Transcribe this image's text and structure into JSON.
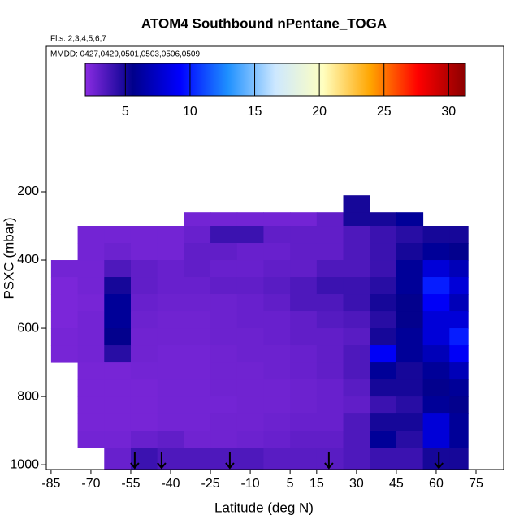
{
  "chart_data": {
    "type": "heatmap",
    "title": "ATOM4 Southbound nPentane_TOGA",
    "subtitle": "Flts: 2,3,4,5,6,7",
    "annotation": "MMDD: 0427,0429,0501,0503,0506,0509",
    "xlabel": "Latitude (deg N)",
    "ylabel": "PSXC (mbar)",
    "xlim": [
      -86.8,
      85.4
    ],
    "xticks": [
      -85,
      -70,
      -55,
      -40,
      -25,
      -10,
      5,
      15,
      30,
      45,
      60,
      75
    ],
    "ylim": [
      1014,
      -226
    ],
    "yticks": [
      200,
      400,
      600,
      800,
      1000
    ],
    "x_edges": [
      -85,
      -75,
      -65,
      -55,
      -45,
      -35,
      -25,
      -15,
      -5,
      5,
      15,
      25,
      35,
      45,
      55,
      65,
      72
    ],
    "y_edges": [
      210,
      260,
      300,
      350,
      400,
      450,
      500,
      550,
      600,
      650,
      700,
      750,
      800,
      850,
      900,
      950,
      1014
    ],
    "values": [
      [
        null,
        null,
        null,
        null,
        null,
        null,
        null,
        null,
        null,
        null,
        null,
        5,
        null,
        null,
        null,
        null
      ],
      [
        null,
        null,
        null,
        null,
        null,
        2.5,
        2.5,
        2.5,
        2.5,
        2.5,
        3,
        5,
        5,
        6,
        null,
        null
      ],
      [
        null,
        2.5,
        2.5,
        2.5,
        2.5,
        2.8,
        4,
        4,
        3,
        3,
        3,
        3.5,
        4,
        4.5,
        5,
        5
      ],
      [
        null,
        2.5,
        2.7,
        2.5,
        2.5,
        3,
        3,
        2.8,
        2.8,
        3,
        3,
        3.5,
        4,
        5,
        6,
        5.5
      ],
      [
        2.5,
        2.5,
        3.5,
        3,
        2.8,
        3,
        2.8,
        2.8,
        3,
        3,
        3.5,
        3.5,
        4,
        6,
        8,
        7
      ],
      [
        2.3,
        2.5,
        5,
        3,
        2.8,
        2.8,
        3,
        3,
        3.2,
        3.5,
        4,
        4,
        4.5,
        6,
        10,
        8
      ],
      [
        2.3,
        2.4,
        6,
        2.8,
        2.7,
        2.7,
        2.7,
        2.8,
        3,
        3.5,
        3.5,
        4,
        5,
        5.5,
        9,
        7
      ],
      [
        2.3,
        2.5,
        6,
        2.7,
        2.6,
        2.6,
        2.7,
        2.8,
        2.8,
        3,
        3.3,
        3.5,
        4.5,
        5.5,
        8,
        8
      ],
      [
        2.4,
        2.5,
        5.5,
        2.6,
        2.6,
        2.6,
        2.7,
        2.7,
        2.8,
        3,
        3,
        3.2,
        5,
        6,
        8,
        10
      ],
      [
        2.4,
        2.5,
        4.5,
        2.6,
        2.5,
        2.5,
        2.6,
        2.7,
        2.7,
        2.8,
        3,
        3.5,
        9,
        6,
        7,
        9
      ],
      [
        null,
        2.4,
        2.4,
        2.5,
        2.5,
        2.5,
        2.6,
        2.6,
        2.7,
        2.8,
        3,
        3.5,
        6,
        5,
        6,
        7
      ],
      [
        null,
        2.4,
        2.4,
        2.4,
        2.5,
        2.5,
        2.6,
        2.6,
        2.6,
        2.7,
        2.8,
        3.2,
        5,
        5,
        5.5,
        6
      ],
      [
        null,
        2.4,
        2.4,
        2.4,
        2.5,
        2.5,
        2.5,
        2.6,
        2.6,
        2.7,
        2.8,
        3,
        4,
        4.5,
        6,
        5.5
      ],
      [
        null,
        2.4,
        2.4,
        2.4,
        2.5,
        2.5,
        2.6,
        2.6,
        2.7,
        2.8,
        2.8,
        3.5,
        5,
        5,
        8,
        6
      ],
      [
        null,
        2.5,
        2.5,
        2.8,
        3,
        2.6,
        2.6,
        2.7,
        2.8,
        3,
        3,
        3.5,
        6,
        4.5,
        8,
        6
      ],
      [
        null,
        null,
        2.8,
        4,
        3.5,
        3.5,
        3.5,
        3.5,
        3.2,
        3.2,
        3.2,
        3.5,
        4,
        4,
        5,
        5
      ]
    ],
    "colorbar": {
      "lim": [
        1.9,
        31.3
      ],
      "ticks": [
        5,
        10,
        15,
        20,
        25,
        30
      ],
      "colors": [
        "#8a2be2",
        "#00008b",
        "#0000ff",
        "#1e90ff",
        "#cde8ff",
        "#ffffc0",
        "#ffa500",
        "#ff0000",
        "#8b0000"
      ]
    },
    "arrows": [
      -53.5,
      -43.4,
      -17.7,
      19.6,
      61
    ]
  }
}
